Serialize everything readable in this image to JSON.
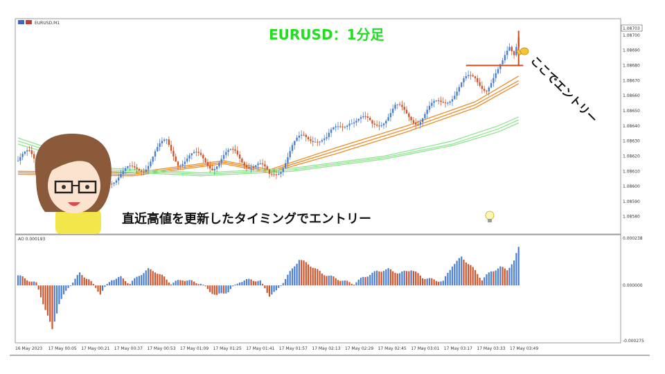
{
  "chart_data": [
    {
      "type": "candlestick",
      "symbol_label": "EURUSD,M1",
      "title": "EURUSD：1分足",
      "caption": "直近高値を更新したタイミングでエントリー",
      "entry_annotation": "ここでエントリー",
      "last_price": "1.08703",
      "ylim": [
        1.08573,
        1.08705
      ],
      "y_ticks": [
        "1.08700",
        "1.08690",
        "1.08680",
        "1.08670",
        "1.08660",
        "1.08650",
        "1.08640",
        "1.08630",
        "1.08620",
        "1.08610",
        "1.08600",
        "1.08590",
        "1.08580"
      ],
      "x_ticks": [
        "16 May 2023",
        "17 May 00:05",
        "17 May 00:21",
        "17 May 00:37",
        "17 May 00:53",
        "17 May 01:09",
        "17 May 01:25",
        "17 May 01:41",
        "17 May 01:57",
        "17 May 02:13",
        "17 May 02:29",
        "17 May 02:45",
        "17 May 03:01",
        "17 May 03:17",
        "17 May 03:33",
        "17 May 03:49"
      ],
      "close_path": [
        [
          0,
          1.08617
        ],
        [
          5,
          1.0862
        ],
        [
          10,
          1.08614
        ],
        [
          15,
          1.08612
        ],
        [
          20,
          1.08622
        ],
        [
          25,
          1.08612
        ],
        [
          30,
          1.08604
        ],
        [
          35,
          1.08602
        ],
        [
          40,
          1.08606
        ],
        [
          45,
          1.08607
        ],
        [
          50,
          1.0861
        ],
        [
          55,
          1.08614
        ],
        [
          60,
          1.08622
        ],
        [
          65,
          1.08628
        ],
        [
          70,
          1.08618
        ],
        [
          75,
          1.08619
        ],
        [
          80,
          1.08618
        ],
        [
          85,
          1.08615
        ],
        [
          90,
          1.08619
        ],
        [
          95,
          1.08621
        ],
        [
          100,
          1.08617
        ],
        [
          105,
          1.08613
        ],
        [
          110,
          1.08606
        ],
        [
          115,
          1.08614
        ],
        [
          120,
          1.08625
        ],
        [
          125,
          1.08632
        ],
        [
          130,
          1.08634
        ],
        [
          135,
          1.0863
        ],
        [
          140,
          1.08638
        ],
        [
          145,
          1.08646
        ],
        [
          150,
          1.08643
        ],
        [
          155,
          1.0864
        ],
        [
          160,
          1.08646
        ],
        [
          165,
          1.08651
        ],
        [
          170,
          1.08647
        ],
        [
          175,
          1.08645
        ],
        [
          180,
          1.0865
        ],
        [
          185,
          1.08655
        ],
        [
          190,
          1.08662
        ],
        [
          195,
          1.08668
        ],
        [
          200,
          1.08671
        ],
        [
          205,
          1.08667
        ],
        [
          210,
          1.08674
        ],
        [
          212,
          1.08679
        ],
        [
          215,
          1.08692
        ],
        [
          217,
          1.0869
        ],
        [
          219,
          1.08703
        ]
      ],
      "ma_series": [
        {
          "color": "#f08a24",
          "values": [
            [
              0,
              1.0861
            ],
            [
              50,
              1.08609
            ],
            [
              90,
              1.08617
            ],
            [
              110,
              1.08611
            ],
            [
              140,
              1.08626
            ],
            [
              170,
              1.0864
            ],
            [
              200,
              1.08656
            ],
            [
              219,
              1.08673
            ]
          ]
        },
        {
          "color": "#f08a24",
          "values": [
            [
              0,
              1.08609
            ],
            [
              50,
              1.08608
            ],
            [
              90,
              1.08616
            ],
            [
              110,
              1.0861
            ],
            [
              140,
              1.08624
            ],
            [
              170,
              1.08638
            ],
            [
              200,
              1.08654
            ],
            [
              219,
              1.0867
            ]
          ]
        },
        {
          "color": "#f08a24",
          "values": [
            [
              0,
              1.08608
            ],
            [
              50,
              1.08607
            ],
            [
              90,
              1.08615
            ],
            [
              110,
              1.08609
            ],
            [
              140,
              1.08622
            ],
            [
              170,
              1.08636
            ],
            [
              200,
              1.08652
            ],
            [
              219,
              1.08668
            ]
          ]
        },
        {
          "color": "#8fe58f",
          "values": [
            [
              0,
              1.08632
            ],
            [
              40,
              1.08612
            ],
            [
              80,
              1.08609
            ],
            [
              120,
              1.08612
            ],
            [
              160,
              1.0862
            ],
            [
              190,
              1.0863
            ],
            [
              210,
              1.0864
            ],
            [
              219,
              1.08646
            ]
          ]
        },
        {
          "color": "#8fe58f",
          "values": [
            [
              0,
              1.0863
            ],
            [
              40,
              1.08611
            ],
            [
              80,
              1.08608
            ],
            [
              120,
              1.08611
            ],
            [
              160,
              1.08619
            ],
            [
              190,
              1.08628
            ],
            [
              210,
              1.08638
            ],
            [
              219,
              1.08644
            ]
          ]
        },
        {
          "color": "#8fe58f",
          "values": [
            [
              0,
              1.08628
            ],
            [
              40,
              1.0861
            ],
            [
              80,
              1.08607
            ],
            [
              120,
              1.0861
            ],
            [
              160,
              1.08618
            ],
            [
              190,
              1.08627
            ],
            [
              210,
              1.08636
            ],
            [
              219,
              1.08642
            ]
          ]
        }
      ],
      "breakout_level": 1.0868
    },
    {
      "type": "bar",
      "label": "AO 0.000193",
      "y_ticks": [
        "0.000238",
        "0.000000",
        "-0.000275"
      ],
      "ylim": [
        -0.000275,
        0.000238
      ],
      "ao_path": [
        [
          0,
          5e-05
        ],
        [
          8,
          1e-05
        ],
        [
          12,
          -0.00012
        ],
        [
          15,
          -0.00022
        ],
        [
          18,
          -9e-05
        ],
        [
          22,
          -1e-05
        ],
        [
          27,
          6e-05
        ],
        [
          31,
          3e-05
        ],
        [
          36,
          -4e-05
        ],
        [
          41,
          3e-05
        ],
        [
          45,
          4e-05
        ],
        [
          49,
          1e-05
        ],
        [
          53,
          5e-05
        ],
        [
          57,
          8e-05
        ],
        [
          60,
          7e-05
        ],
        [
          64,
          4e-05
        ],
        [
          67,
          1e-05
        ],
        [
          72,
          3e-05
        ],
        [
          80,
          1e-05
        ],
        [
          84,
          -3e-05
        ],
        [
          87,
          -5e-05
        ],
        [
          92,
          -3e-05
        ],
        [
          97,
          2e-05
        ],
        [
          102,
          3e-05
        ],
        [
          106,
          2e-05
        ],
        [
          110,
          -5e-05
        ],
        [
          113,
          -3e-05
        ],
        [
          118,
          5e-05
        ],
        [
          123,
          0.00013
        ],
        [
          128,
          0.0001
        ],
        [
          133,
          6e-05
        ],
        [
          138,
          4e-05
        ],
        [
          143,
          2e-05
        ],
        [
          147,
          1e-05
        ],
        [
          151,
          4e-05
        ],
        [
          157,
          7e-05
        ],
        [
          162,
          8e-05
        ],
        [
          167,
          6e-05
        ],
        [
          172,
          8e-05
        ],
        [
          177,
          4e-05
        ],
        [
          181,
          3e-05
        ],
        [
          186,
          2e-05
        ],
        [
          190,
          0.0001
        ],
        [
          194,
          0.00014
        ],
        [
          198,
          0.0001
        ],
        [
          203,
          3e-05
        ],
        [
          207,
          7e-05
        ],
        [
          211,
          9e-05
        ],
        [
          214,
          8e-05
        ],
        [
          217,
          0.00012
        ],
        [
          219,
          0.00019
        ]
      ]
    }
  ]
}
